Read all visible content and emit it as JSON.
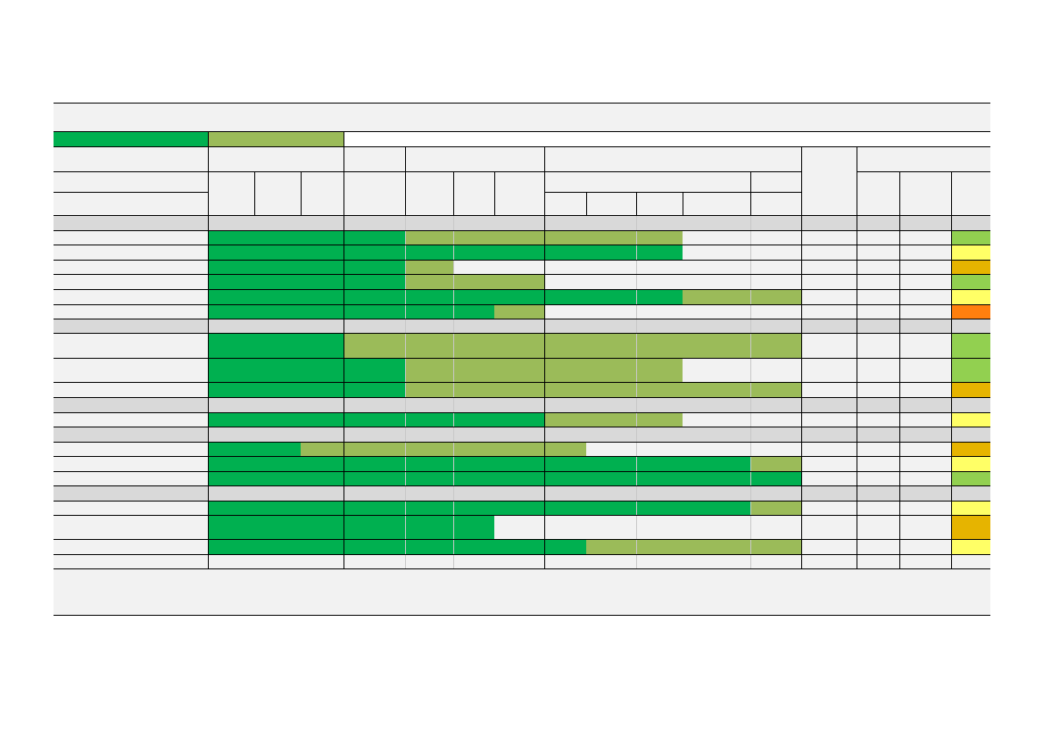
{
  "colors": {
    "panel": "#f2f2f2",
    "group_band": "#d9d9d9",
    "dark_green": "#00b050",
    "olive_green": "#9bbb59",
    "rating_light_green": "#92d050",
    "rating_yellow": "#ffff66",
    "rating_amber": "#e6b400",
    "rating_orange": "#ff7f0e",
    "grid": "#000000"
  },
  "legend": [
    {
      "name": "legend-dark-green",
      "color": "dark_green",
      "label": ""
    },
    {
      "name": "legend-olive-green",
      "color": "olive_green",
      "label": ""
    }
  ],
  "header": {
    "title": "",
    "footnote": ""
  },
  "rows": [
    {
      "kind": "group",
      "label": ""
    },
    {
      "kind": "item",
      "label": "",
      "segments": [
        [
          "dark_green",
          0,
          4
        ],
        [
          "olive_green",
          4,
          10
        ]
      ],
      "rating": "rating_light_green"
    },
    {
      "kind": "item",
      "label": "",
      "segments": [
        [
          "dark_green",
          0,
          10
        ]
      ],
      "rating": "rating_yellow"
    },
    {
      "kind": "item",
      "label": "",
      "segments": [
        [
          "dark_green",
          0,
          4
        ],
        [
          "olive_green",
          4,
          5
        ]
      ],
      "rating": "rating_amber"
    },
    {
      "kind": "item",
      "label": "",
      "segments": [
        [
          "dark_green",
          0,
          4
        ],
        [
          "olive_green",
          4,
          7
        ]
      ],
      "rating": "rating_light_green"
    },
    {
      "kind": "item",
      "label": "",
      "segments": [
        [
          "dark_green",
          0,
          10
        ],
        [
          "olive_green",
          10,
          12
        ]
      ],
      "rating": "rating_yellow"
    },
    {
      "kind": "item",
      "label": "",
      "segments": [
        [
          "dark_green",
          0,
          6
        ],
        [
          "olive_green",
          6,
          7
        ]
      ],
      "rating": "rating_orange"
    },
    {
      "kind": "group",
      "label": ""
    },
    {
      "kind": "item",
      "label": "",
      "segments": [
        [
          "dark_green",
          0,
          3
        ],
        [
          "olive_green",
          3,
          12
        ]
      ],
      "rating": "rating_light_green"
    },
    {
      "kind": "item",
      "label": "",
      "segments": [
        [
          "dark_green",
          0,
          4
        ],
        [
          "olive_green",
          4,
          10
        ]
      ],
      "rating": "rating_light_green"
    },
    {
      "kind": "item",
      "label": "",
      "segments": [
        [
          "dark_green",
          0,
          4
        ],
        [
          "olive_green",
          4,
          12
        ]
      ],
      "rating": "rating_amber"
    },
    {
      "kind": "group",
      "label": ""
    },
    {
      "kind": "item",
      "label": "",
      "segments": [
        [
          "dark_green",
          0,
          7
        ],
        [
          "olive_green",
          7,
          10
        ]
      ],
      "rating": "rating_yellow"
    },
    {
      "kind": "group",
      "label": ""
    },
    {
      "kind": "item",
      "label": "",
      "segments": [
        [
          "dark_green",
          0,
          2
        ],
        [
          "olive_green",
          2,
          8
        ]
      ],
      "rating": "rating_amber"
    },
    {
      "kind": "item",
      "label": "",
      "segments": [
        [
          "dark_green",
          0,
          11
        ],
        [
          "olive_green",
          11,
          12
        ]
      ],
      "rating": "rating_yellow"
    },
    {
      "kind": "item",
      "label": "",
      "segments": [
        [
          "dark_green",
          0,
          12
        ]
      ],
      "rating": "rating_light_green"
    },
    {
      "kind": "group",
      "label": ""
    },
    {
      "kind": "item",
      "label": "",
      "segments": [
        [
          "dark_green",
          0,
          11
        ],
        [
          "olive_green",
          11,
          12
        ]
      ],
      "rating": "rating_yellow"
    },
    {
      "kind": "item",
      "label": "",
      "segments": [
        [
          "dark_green",
          0,
          6
        ]
      ],
      "rating": "rating_amber"
    },
    {
      "kind": "item",
      "label": "",
      "segments": [
        [
          "dark_green",
          0,
          8
        ],
        [
          "olive_green",
          8,
          12
        ]
      ],
      "rating": "rating_yellow"
    },
    {
      "kind": "item",
      "label": "",
      "segments": [],
      "rating": ""
    }
  ]
}
